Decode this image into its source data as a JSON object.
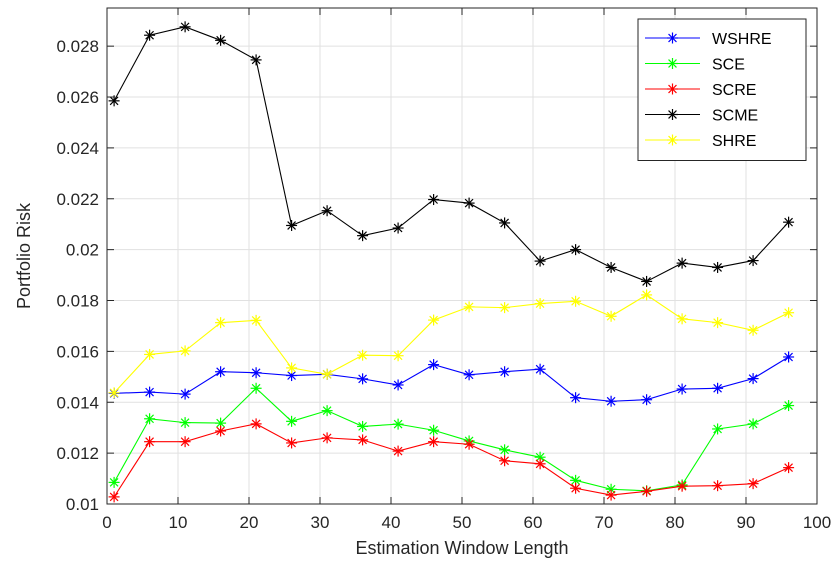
{
  "chart_data": {
    "type": "line",
    "title": "",
    "xlabel": "Estimation Window Length",
    "ylabel": "Portfolio Risk",
    "xlim": [
      0,
      100
    ],
    "ylim": [
      0.01,
      0.0295
    ],
    "xticks": [
      0,
      10,
      20,
      30,
      40,
      50,
      60,
      70,
      80,
      90,
      100
    ],
    "xtick_labels": [
      "0",
      "10",
      "20",
      "30",
      "40",
      "50",
      "60",
      "70",
      "80",
      "90",
      "100"
    ],
    "yticks": [
      0.01,
      0.012,
      0.014,
      0.016,
      0.018,
      0.02,
      0.022,
      0.024,
      0.026,
      0.028
    ],
    "ytick_labels": [
      "0.01",
      "0.012",
      "0.014",
      "0.016",
      "0.018",
      "0.02",
      "0.022",
      "0.024",
      "0.026",
      "0.028"
    ],
    "grid": true,
    "legend_position": "top-right",
    "marker": "*",
    "x": [
      1,
      6,
      11,
      16,
      21,
      26,
      31,
      36,
      41,
      46,
      51,
      56,
      61,
      66,
      71,
      76,
      81,
      86,
      91,
      96
    ],
    "series": [
      {
        "name": "WSHRE",
        "color": "#0000ff",
        "values": [
          0.01435,
          0.0144,
          0.01432,
          0.0152,
          0.01516,
          0.01505,
          0.0151,
          0.01492,
          0.01468,
          0.01548,
          0.01508,
          0.0152,
          0.0153,
          0.01418,
          0.01404,
          0.0141,
          0.01452,
          0.01455,
          0.01493,
          0.01578
        ]
      },
      {
        "name": "SCE",
        "color": "#00ff00",
        "values": [
          0.01085,
          0.01335,
          0.0132,
          0.01318,
          0.01455,
          0.01325,
          0.01367,
          0.01305,
          0.01314,
          0.0129,
          0.01248,
          0.01213,
          0.01184,
          0.01093,
          0.01058,
          0.01052,
          0.01075,
          0.01295,
          0.01315,
          0.01387
        ]
      },
      {
        "name": "SCRE",
        "color": "#ff0000",
        "values": [
          0.01028,
          0.01245,
          0.01245,
          0.01287,
          0.01315,
          0.0124,
          0.0126,
          0.01252,
          0.01208,
          0.01245,
          0.01235,
          0.0117,
          0.01158,
          0.01062,
          0.01035,
          0.0105,
          0.0107,
          0.01072,
          0.0108,
          0.01143
        ]
      },
      {
        "name": "SCME",
        "color": "#000000",
        "values": [
          0.02585,
          0.02843,
          0.02876,
          0.02823,
          0.02746,
          0.02095,
          0.02153,
          0.02055,
          0.02085,
          0.02197,
          0.02183,
          0.02105,
          0.01955,
          0.02,
          0.0193,
          0.01875,
          0.01947,
          0.0193,
          0.01957,
          0.02108
        ]
      },
      {
        "name": "SHRE",
        "color": "#ffff00",
        "values": [
          0.01437,
          0.01588,
          0.01602,
          0.01713,
          0.01722,
          0.01535,
          0.0151,
          0.01585,
          0.01583,
          0.01723,
          0.01775,
          0.01772,
          0.01788,
          0.01797,
          0.01738,
          0.01822,
          0.01728,
          0.01713,
          0.01683,
          0.01752
        ]
      }
    ]
  }
}
